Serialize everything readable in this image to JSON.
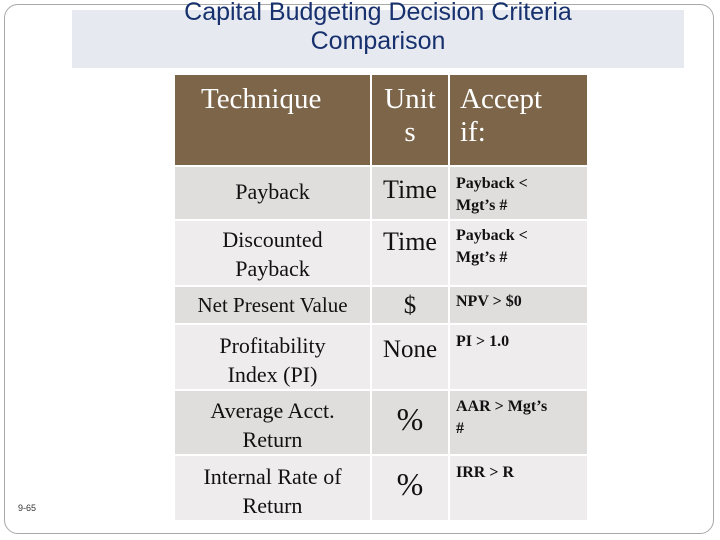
{
  "slide": {
    "title": "Capital Budgeting Decision Criteria\nComparison",
    "number": "9-65"
  },
  "table": {
    "headers": [
      "Technique",
      "Unit\ns",
      "Accept\nif:"
    ],
    "rows": [
      {
        "technique": "Payback",
        "unit": "Time",
        "accept": "Payback <\nMgt’s #"
      },
      {
        "technique": "Discounted\nPayback",
        "unit": "Time",
        "accept": "Payback <\nMgt’s #"
      },
      {
        "technique": "Net Present Value",
        "unit": "$",
        "accept": "NPV > $0"
      },
      {
        "technique": "Profitability\nIndex (PI)",
        "unit": "None",
        "accept": "PI > 1.0"
      },
      {
        "technique": "Average Acct.\nReturn",
        "unit": "%",
        "accept": "AAR > Mgt’s\n#"
      },
      {
        "technique": "Internal Rate of\nReturn",
        "unit": "%",
        "accept": "IRR > R"
      }
    ]
  },
  "colors": {
    "title_text": "#17306e",
    "title_bg": "#e6e9ef",
    "header_bg": "#7c6549",
    "row_dark": "#e0dddd",
    "row_light": "#eeecec"
  }
}
